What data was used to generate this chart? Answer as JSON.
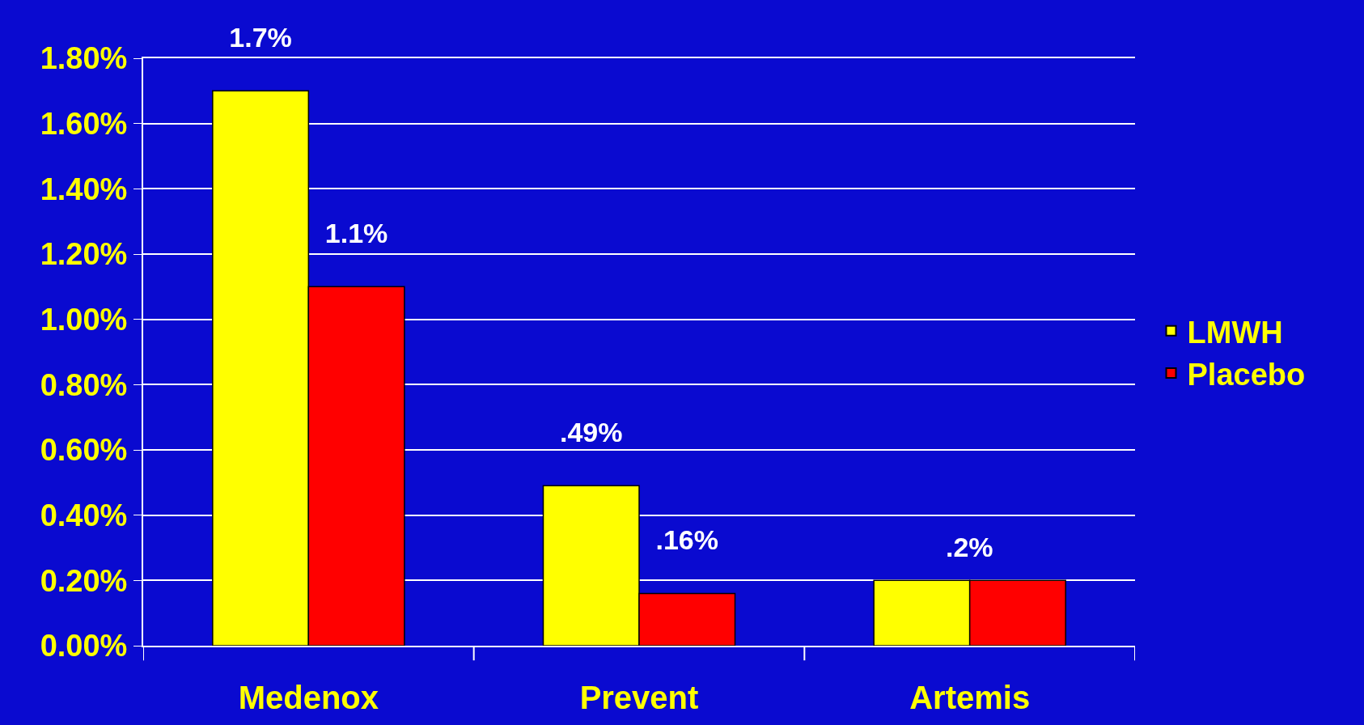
{
  "chart_data": {
    "type": "bar",
    "categories": [
      "Medenox",
      "Prevent",
      "Artemis"
    ],
    "series": [
      {
        "name": "LMWH",
        "color": "#ffff00",
        "values": [
          1.7,
          0.49,
          0.2
        ],
        "value_labels": [
          "1.7%",
          ".49%",
          null
        ]
      },
      {
        "name": "Placebo",
        "color": "#ff0000",
        "values": [
          1.1,
          0.16,
          0.2
        ],
        "value_labels": [
          "1.1%",
          ".16%",
          null
        ]
      }
    ],
    "annotations": [
      {
        "text": ".2%",
        "x": "Artemis",
        "y": 0.2
      }
    ],
    "ylim": [
      0,
      1.8
    ],
    "yticks": [
      {
        "value": 0,
        "label": "0.00%"
      },
      {
        "value": 0.2,
        "label": "0.20%"
      },
      {
        "value": 0.4,
        "label": "0.40%"
      },
      {
        "value": 0.6,
        "label": "0.60%"
      },
      {
        "value": 0.8,
        "label": "0.80%"
      },
      {
        "value": 1.0,
        "label": "1.00%"
      },
      {
        "value": 1.2,
        "label": "1.20%"
      },
      {
        "value": 1.4,
        "label": "1.40%"
      },
      {
        "value": 1.6,
        "label": "1.60%"
      },
      {
        "value": 1.8,
        "label": "1.80%"
      }
    ],
    "grid": "y",
    "legend": "right"
  }
}
